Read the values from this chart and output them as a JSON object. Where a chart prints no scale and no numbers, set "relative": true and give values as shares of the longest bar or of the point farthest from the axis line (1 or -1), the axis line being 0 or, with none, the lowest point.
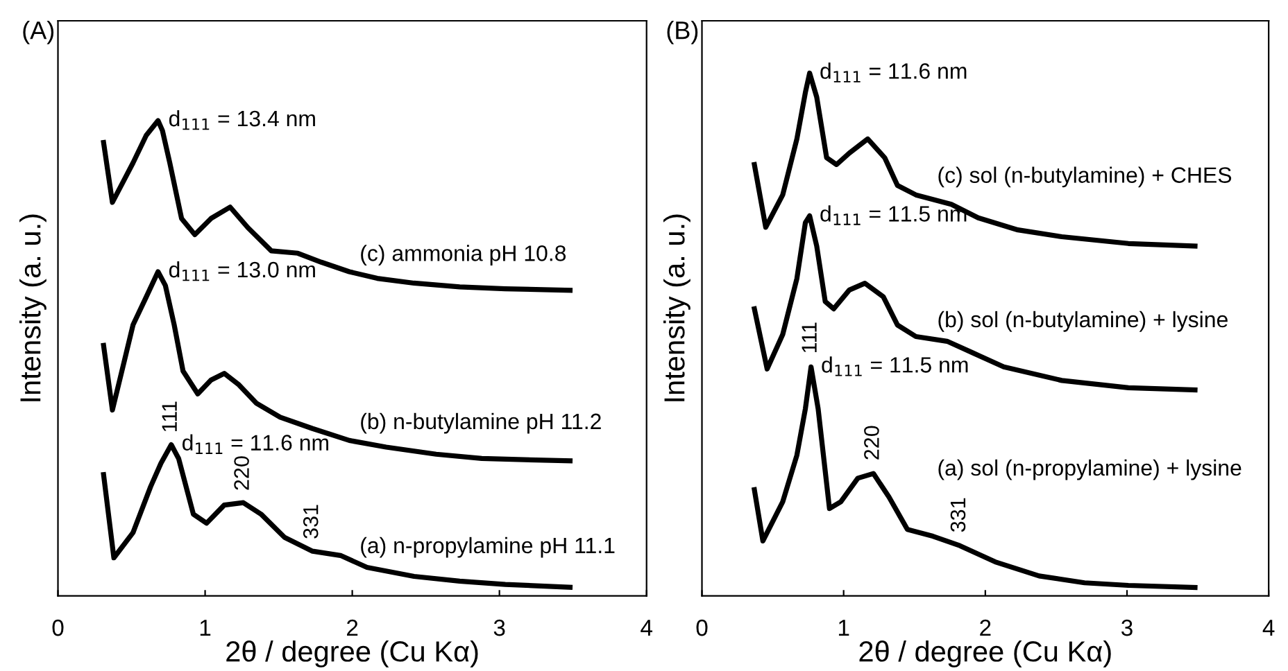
{
  "chart_data": [
    {
      "type": "line",
      "title": "(A)",
      "xlabel": "2θ / degree (Cu Kα)",
      "ylabel": "Intensity (a. u.)",
      "relative": true,
      "xlim": [
        0,
        4
      ],
      "xticks": [
        0,
        1,
        2,
        3,
        4
      ],
      "tick_labels": "x",
      "grid": false,
      "marker": "none",
      "line_style": "solid",
      "series": [
        {
          "name": "(c) ammonia pH 10.8",
          "color": "#000000",
          "x": [
            0.31,
            0.37,
            0.51,
            0.6,
            0.68,
            0.71,
            0.76,
            0.84,
            0.93,
            1.04,
            1.17,
            1.29,
            1.45,
            1.63,
            1.79,
            1.98,
            2.17,
            2.42,
            2.73,
            3.04,
            3.48
          ],
          "values": [
            0.954,
            0.828,
            0.911,
            0.969,
            1.0,
            0.979,
            0.911,
            0.794,
            0.76,
            0.794,
            0.818,
            0.775,
            0.726,
            0.721,
            0.702,
            0.682,
            0.668,
            0.658,
            0.65,
            0.646,
            0.643
          ]
        },
        {
          "name": "(b) n-butylamine pH 11.2",
          "color": "#000000",
          "x": [
            0.31,
            0.37,
            0.45,
            0.51,
            0.6,
            0.68,
            0.73,
            0.79,
            0.85,
            0.95,
            1.04,
            1.13,
            1.23,
            1.35,
            1.51,
            1.73,
            1.98,
            2.23,
            2.57,
            2.88,
            3.48
          ],
          "values": [
            0.527,
            0.391,
            0.493,
            0.57,
            0.629,
            0.682,
            0.653,
            0.57,
            0.473,
            0.425,
            0.454,
            0.468,
            0.444,
            0.405,
            0.376,
            0.352,
            0.327,
            0.313,
            0.298,
            0.289,
            0.284
          ]
        },
        {
          "name": "(a) n-propylamine pH 11.1",
          "color": "#000000",
          "x": [
            0.31,
            0.38,
            0.51,
            0.63,
            0.7,
            0.77,
            0.82,
            0.92,
            1.01,
            1.13,
            1.26,
            1.38,
            1.54,
            1.73,
            1.92,
            2.1,
            2.42,
            2.73,
            3.04,
            3.48
          ],
          "values": [
            0.255,
            0.08,
            0.133,
            0.23,
            0.279,
            0.318,
            0.289,
            0.172,
            0.153,
            0.191,
            0.196,
            0.172,
            0.123,
            0.094,
            0.085,
            0.06,
            0.041,
            0.031,
            0.024,
            0.018
          ]
        }
      ],
      "annotations": [
        {
          "text": "d$_{111}$ = 13.4 nm",
          "x": 0.68,
          "y": 1.0
        },
        {
          "text": "d$_{111}$ = 13.0 nm",
          "x": 0.68,
          "y": 0.682
        },
        {
          "text": "d$_{111}$ = 11.6 nm",
          "x": 0.77,
          "y": 0.318
        },
        {
          "text": "111",
          "x": 0.77,
          "y": 0.318
        },
        {
          "text": "220",
          "x": 1.26,
          "y": 0.196
        },
        {
          "text": "331",
          "x": 1.73,
          "y": 0.094
        }
      ]
    },
    {
      "type": "line",
      "title": "(B)",
      "xlabel": "2θ / degree (Cu Kα)",
      "ylabel": "Intensity (a. u.)",
      "relative": true,
      "xlim": [
        0,
        4
      ],
      "xticks": [
        0,
        1,
        2,
        3,
        4
      ],
      "tick_labels": "x",
      "grid": false,
      "marker": "none",
      "line_style": "solid",
      "series": [
        {
          "name": "(c) sol (n-butylamine) + CHES",
          "color": "#000000",
          "x": [
            0.37,
            0.45,
            0.57,
            0.67,
            0.73,
            0.76,
            0.81,
            0.88,
            0.95,
            1.04,
            1.17,
            1.29,
            1.38,
            1.51,
            1.76,
            1.95,
            2.23,
            2.54,
            3.01,
            3.48
          ],
          "values": [
            0.825,
            0.705,
            0.767,
            0.874,
            0.963,
            1.0,
            0.954,
            0.838,
            0.825,
            0.847,
            0.874,
            0.838,
            0.785,
            0.767,
            0.749,
            0.723,
            0.7,
            0.687,
            0.674,
            0.669
          ]
        },
        {
          "name": "(b) sol (n-butylamine) + lysine",
          "color": "#000000",
          "x": [
            0.37,
            0.46,
            0.57,
            0.67,
            0.73,
            0.76,
            0.81,
            0.87,
            0.93,
            1.04,
            1.15,
            1.28,
            1.38,
            1.51,
            1.73,
            1.91,
            2.13,
            2.54,
            3.01,
            3.48
          ],
          "values": [
            0.549,
            0.434,
            0.5,
            0.607,
            0.714,
            0.727,
            0.669,
            0.563,
            0.549,
            0.585,
            0.598,
            0.572,
            0.518,
            0.496,
            0.487,
            0.465,
            0.438,
            0.412,
            0.398,
            0.394
          ]
        },
        {
          "name": "(a) sol (n-propylamine) + lysine",
          "color": "#000000",
          "x": [
            0.37,
            0.43,
            0.57,
            0.67,
            0.73,
            0.77,
            0.82,
            0.9,
            0.98,
            1.1,
            1.21,
            1.32,
            1.45,
            1.63,
            1.82,
            2.07,
            2.38,
            2.7,
            3.01,
            3.48
          ],
          "values": [
            0.203,
            0.105,
            0.18,
            0.269,
            0.358,
            0.438,
            0.358,
            0.167,
            0.18,
            0.225,
            0.234,
            0.189,
            0.127,
            0.114,
            0.096,
            0.065,
            0.038,
            0.025,
            0.02,
            0.016
          ]
        }
      ],
      "annotations": [
        {
          "text": "d$_{111}$ = 11.6 nm",
          "x": 0.76,
          "y": 1.0
        },
        {
          "text": "d$_{111}$ = 11.5 nm",
          "x": 0.76,
          "y": 0.727
        },
        {
          "text": "d$_{111}$ = 11.5 nm",
          "x": 0.77,
          "y": 0.438
        },
        {
          "text": "111",
          "x": 0.77,
          "y": 0.438
        },
        {
          "text": "220",
          "x": 1.21,
          "y": 0.234
        },
        {
          "text": "331",
          "x": 1.82,
          "y": 0.096
        }
      ]
    }
  ]
}
